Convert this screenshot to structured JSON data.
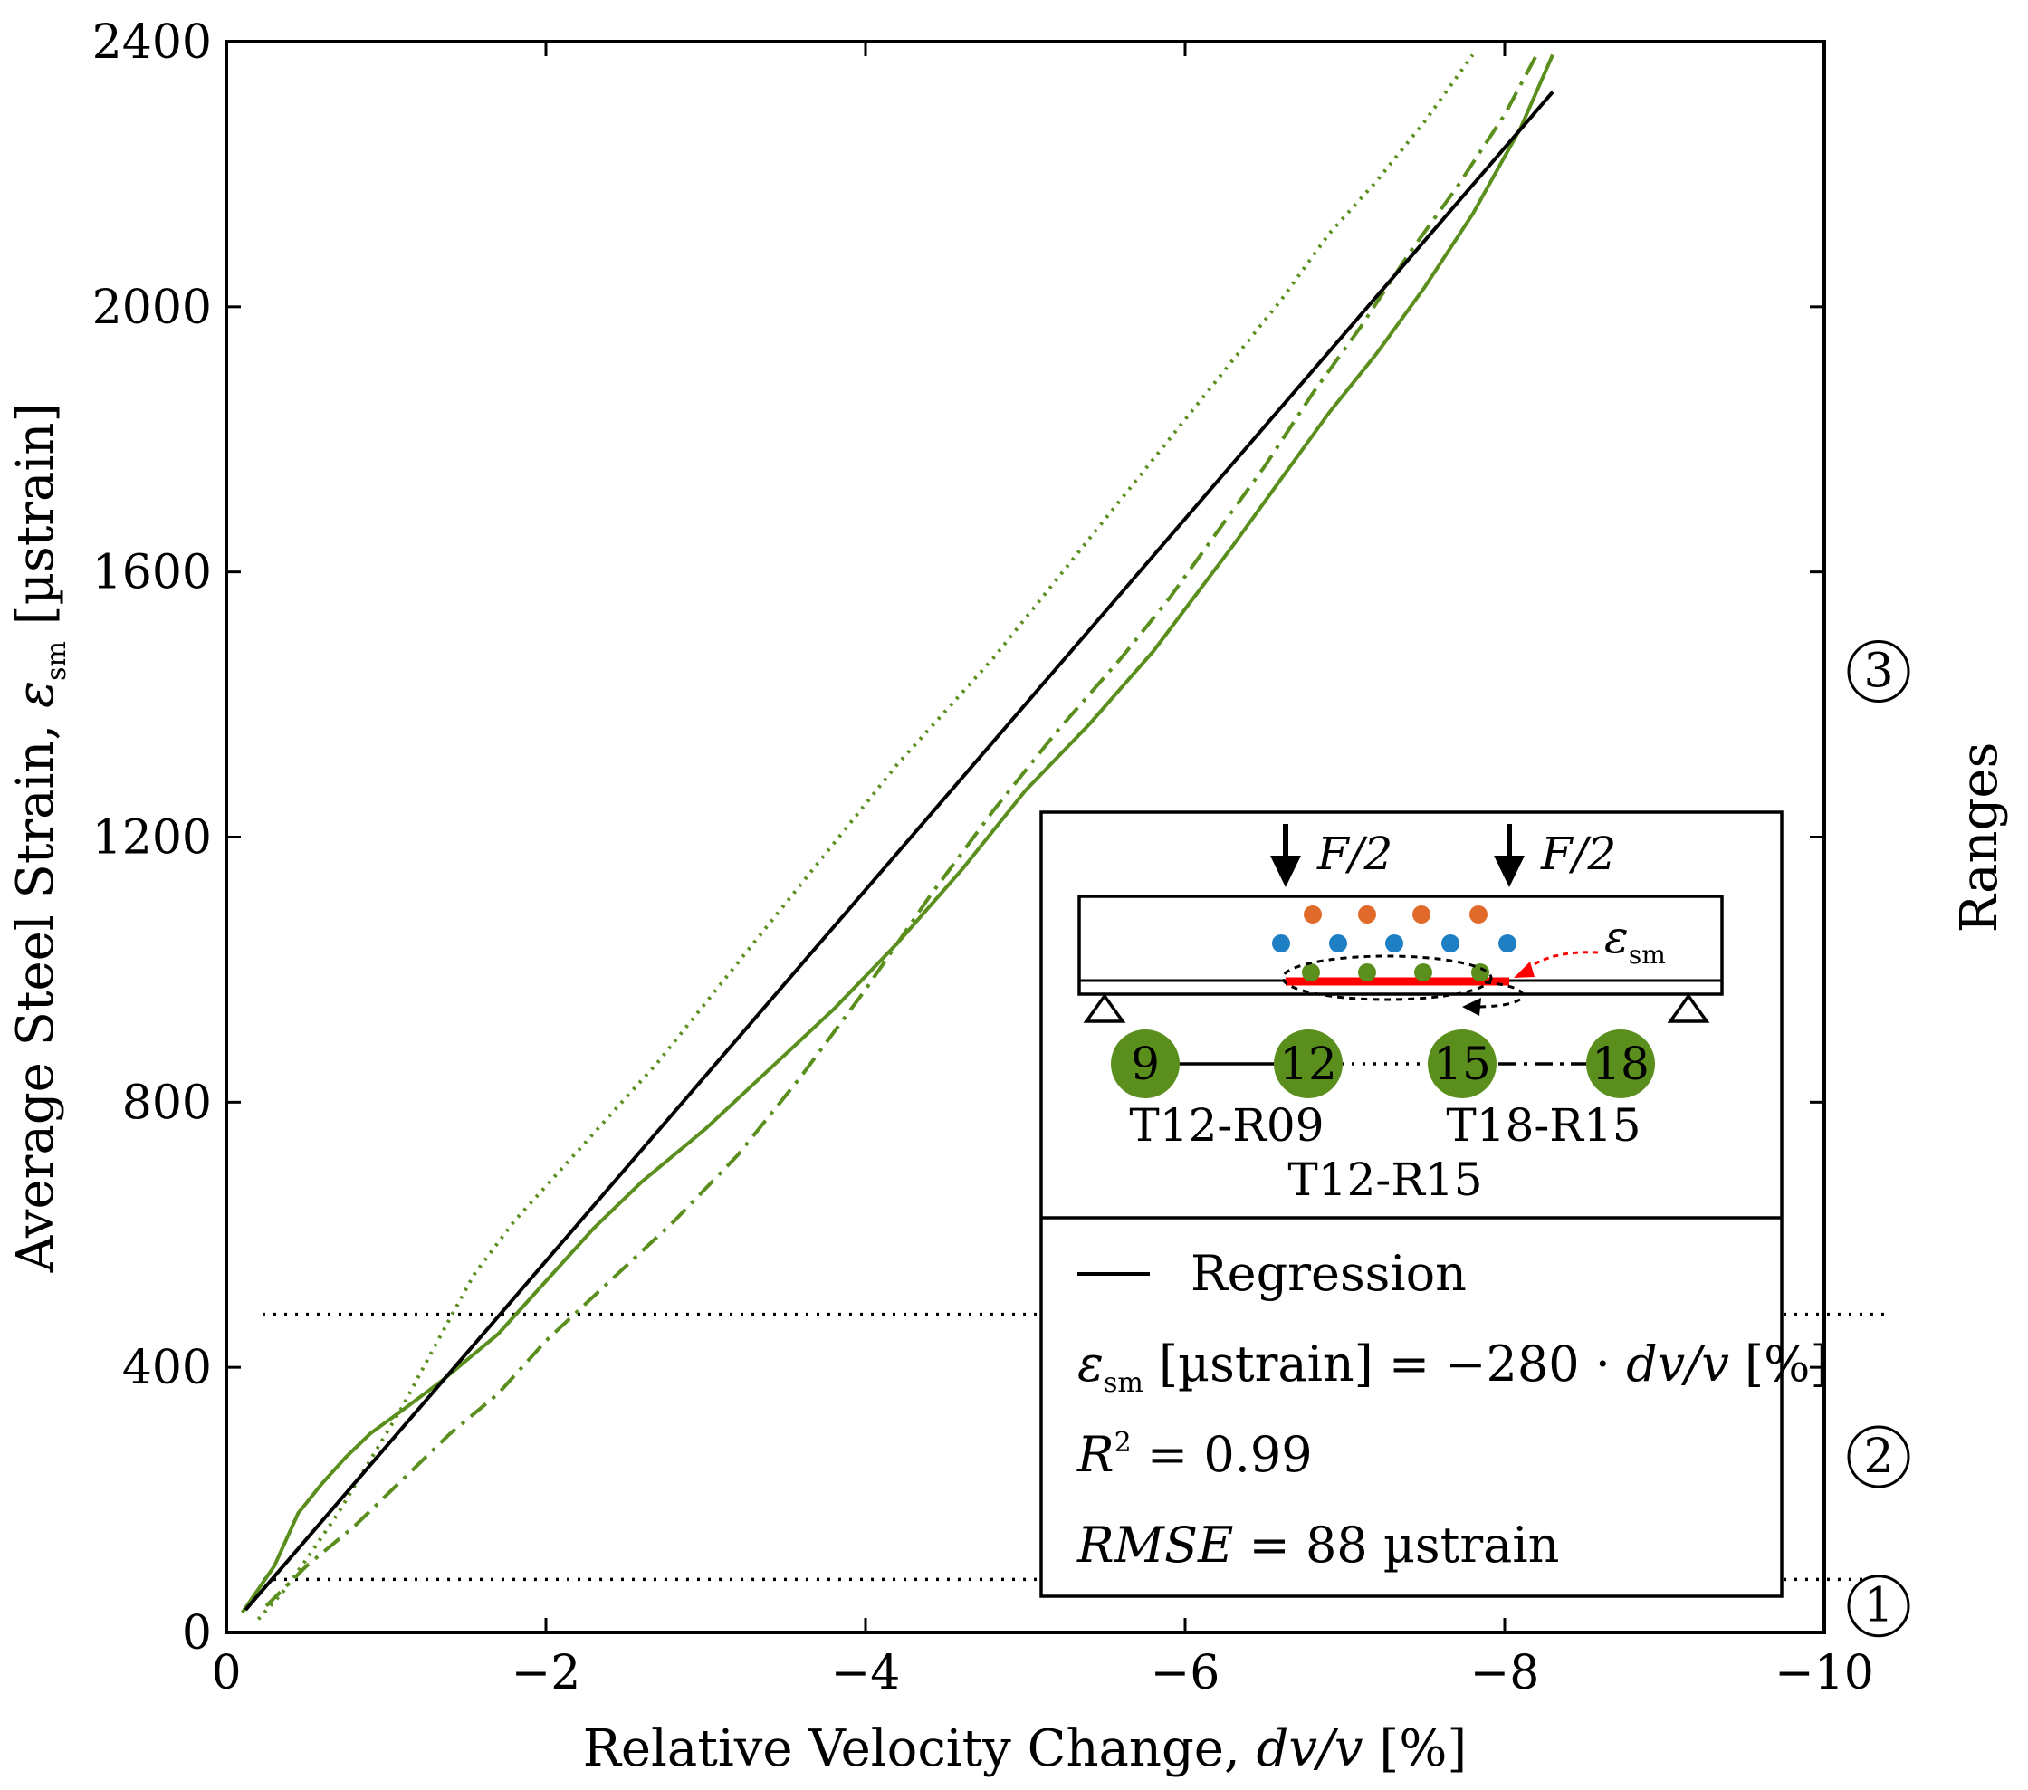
{
  "chart_data": {
    "type": "line",
    "xlabel": "Relative Velocity Change, dv/v [%]",
    "ylabel": "Average Steel Strain, εsm [µstrain]",
    "secondary_ylabel": "Ranges",
    "xlim": [
      0,
      -10
    ],
    "ylim": [
      0,
      2400
    ],
    "x_ticks": [
      0,
      -2,
      -4,
      -6,
      -8,
      -10
    ],
    "x_tick_labels": [
      "0",
      "−2",
      "−4",
      "−6",
      "−8",
      "−10"
    ],
    "y_ticks": [
      0,
      400,
      800,
      1200,
      1600,
      2000,
      2400
    ],
    "y_tick_labels": [
      "0",
      "400",
      "800",
      "1200",
      "1600",
      "2000",
      "2400"
    ],
    "range_thresholds": [
      80,
      480
    ],
    "range_markers": [
      {
        "label": "1",
        "y": 40
      },
      {
        "label": "2",
        "y": 265
      },
      {
        "label": "3",
        "y": 1450
      }
    ],
    "color_green": "#5a8f1e",
    "series": [
      {
        "name": "T12-R09",
        "style": "solid",
        "color": "#5a8f1e",
        "x": [
          -0.1,
          -0.3,
          -0.45,
          -0.6,
          -0.75,
          -0.9,
          -1.1,
          -1.35,
          -1.7,
          -2.0,
          -2.3,
          -2.6,
          -3.0,
          -3.4,
          -3.8,
          -4.2,
          -4.6,
          -5.0,
          -5.4,
          -5.8,
          -6.05,
          -6.3,
          -6.6,
          -6.9,
          -7.2,
          -7.5,
          -7.8,
          -8.1,
          -8.3
        ],
        "values": [
          30,
          100,
          180,
          225,
          265,
          300,
          335,
          380,
          450,
          530,
          610,
          680,
          760,
          850,
          940,
          1040,
          1150,
          1270,
          1370,
          1480,
          1560,
          1640,
          1740,
          1840,
          1930,
          2030,
          2140,
          2270,
          2380
        ]
      },
      {
        "name": "T12-R15",
        "style": "dotted",
        "color": "#5a8f1e",
        "x": [
          -0.2,
          -0.35,
          -0.5,
          -0.7,
          -0.9,
          -1.1,
          -1.3,
          -1.55,
          -1.8,
          -2.1,
          -2.4,
          -2.7,
          -3.0,
          -3.3,
          -3.6,
          -3.9,
          -4.2,
          -4.5,
          -4.8,
          -5.1,
          -5.4,
          -5.7,
          -6.0,
          -6.3,
          -6.6,
          -6.9,
          -7.2,
          -7.5,
          -7.8
        ],
        "values": [
          20,
          60,
          110,
          180,
          260,
          340,
          430,
          540,
          620,
          700,
          780,
          860,
          950,
          1040,
          1130,
          1220,
          1310,
          1390,
          1470,
          1560,
          1650,
          1740,
          1830,
          1920,
          2010,
          2110,
          2190,
          2280,
          2380
        ]
      },
      {
        "name": "T18-R15",
        "style": "dashdot",
        "color": "#5a8f1e",
        "x": [
          -0.25,
          -0.5,
          -0.8,
          -1.1,
          -1.4,
          -1.7,
          -2.0,
          -2.4,
          -2.8,
          -3.2,
          -3.6,
          -4.0,
          -4.4,
          -4.8,
          -5.2,
          -5.6,
          -5.9,
          -6.2,
          -6.5,
          -6.8,
          -7.1,
          -7.4,
          -7.7,
          -8.0,
          -8.2
        ],
        "values": [
          40,
          100,
          160,
          230,
          300,
          360,
          440,
          530,
          620,
          720,
          840,
          970,
          1110,
          1240,
          1360,
          1470,
          1560,
          1660,
          1760,
          1870,
          1970,
          2080,
          2180,
          2290,
          2380
        ]
      },
      {
        "name": "Regression",
        "style": "solid",
        "color": "#000000",
        "x": [
          -0.12,
          -8.3
        ],
        "values": [
          34,
          2324
        ]
      }
    ],
    "inset": {
      "load_labels": [
        "F/2",
        "F/2"
      ],
      "strain_label": "εsm",
      "dot_colors": [
        "#e06a2a",
        "#1f7fc4",
        "#5a8f1e"
      ],
      "circle_labels": [
        "9",
        "12",
        "15",
        "18"
      ],
      "specimen_labels": [
        "T12-R09",
        "T12-R15",
        "T18-R15"
      ]
    },
    "legend": {
      "regression_label": "Regression",
      "equation_lhs": "εsm",
      "equation_unit": " [µstrain] = −280 · ",
      "equation_var": "dv/v",
      "equation_tail": " [%]",
      "r2_lhs": "R",
      "r2_sup": "2",
      "r2_rhs": " = 0.99",
      "rmse_lhs": "RMSE",
      "rmse_rhs": " = 88 µstrain"
    }
  }
}
